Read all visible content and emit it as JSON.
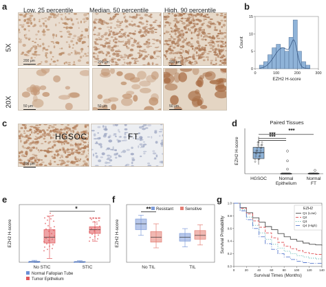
{
  "panels": {
    "a": {
      "label": "a",
      "columns": [
        "Low, 25 percentile",
        "Median, 50 percentile",
        "High, 90 percentile"
      ],
      "rows": [
        "5X",
        "20X"
      ],
      "scale_5x": "200 μm",
      "scale_20x": "50 μm"
    },
    "b": {
      "label": "b"
    },
    "c": {
      "label": "c",
      "images": [
        "HGSOC",
        "FT"
      ],
      "scale": "200 μm"
    },
    "d": {
      "label": "d"
    },
    "e": {
      "label": "e"
    },
    "f": {
      "label": "f"
    },
    "g": {
      "label": "g"
    }
  },
  "chart_data": [
    {
      "id": "b",
      "type": "bar",
      "xlabel": "EZH2 H-score",
      "ylabel": "Count",
      "xlim": [
        0,
        300
      ],
      "ylim": [
        0,
        15
      ],
      "xticks": [
        0,
        100,
        200,
        300
      ],
      "yticks": [
        0,
        5,
        10,
        15
      ],
      "bin_width": 20,
      "bins_start": [
        20,
        40,
        60,
        80,
        100,
        120,
        140,
        160,
        180,
        200,
        220,
        240
      ],
      "values": [
        1,
        2,
        4,
        6,
        7,
        6,
        5,
        9,
        14,
        5,
        2,
        1
      ],
      "density_curve": true,
      "color": "#8fb3d8"
    },
    {
      "id": "d",
      "type": "box",
      "title": "Paired Tissues",
      "ylabel": "EZH2 H-score",
      "categories": [
        "HGSOC",
        "Normal\nEpithelium",
        "Normal\nFT"
      ],
      "ylim": [
        0,
        300
      ],
      "boxes": [
        {
          "min": 60,
          "q1": 100,
          "median": 140,
          "q3": 175,
          "max": 245
        },
        {
          "min": 0,
          "q1": 0,
          "median": 0,
          "q3": 2,
          "max": 5
        },
        {
          "min": 0,
          "q1": 0,
          "median": 0,
          "q3": 3,
          "max": 8
        }
      ],
      "outliers": [
        [
          1,
          150
        ],
        [
          1,
          85
        ],
        [
          1,
          30
        ],
        [
          2,
          22
        ]
      ],
      "significance": [
        [
          "HGSOC",
          "Normal\nEpithelium",
          "***"
        ],
        [
          "HGSOC",
          "Normal\nFT",
          "***"
        ],
        [
          "HGSOC",
          "Normal\nEpithelium",
          "***"
        ]
      ],
      "color": "#8fb3d8"
    },
    {
      "id": "e",
      "type": "box",
      "ylabel": "EZH2 H-score",
      "categories": [
        "No STIC",
        "STIC"
      ],
      "ylim": [
        0,
        300
      ],
      "series": [
        {
          "name": "Normal Fallopian Tube",
          "color": "#6b8fd6",
          "boxes": [
            {
              "min": 0,
              "q1": 0,
              "median": 2,
              "q3": 5,
              "max": 10
            },
            {
              "min": 0,
              "q1": 0,
              "median": 2,
              "q3": 4,
              "max": 8
            }
          ]
        },
        {
          "name": "Tumor Epithelium",
          "color": "#e0575b",
          "boxes": [
            {
              "min": 20,
              "q1": 100,
              "median": 130,
              "q3": 170,
              "max": 240
            },
            {
              "min": 110,
              "q1": 150,
              "median": 170,
              "q3": 185,
              "max": 210
            }
          ]
        }
      ],
      "significance": [
        [
          "No STIC",
          "STIC",
          "*"
        ]
      ]
    },
    {
      "id": "f",
      "type": "box",
      "ylabel": "EZH2 H-score",
      "categories": [
        "No TIL",
        "TIL"
      ],
      "ylim": [
        0,
        300
      ],
      "series": [
        {
          "name": "Resistant",
          "color": "#7d9bd9",
          "boxes": [
            {
              "min": 140,
              "q1": 170,
              "median": 200,
              "q3": 225,
              "max": 245
            },
            {
              "min": 80,
              "q1": 110,
              "median": 130,
              "q3": 150,
              "max": 175
            }
          ]
        },
        {
          "name": "Sensitive",
          "color": "#e47d73",
          "boxes": [
            {
              "min": 75,
              "q1": 105,
              "median": 130,
              "q3": 160,
              "max": 200
            },
            {
              "min": 90,
              "q1": 120,
              "median": 140,
              "q3": 165,
              "max": 195
            }
          ]
        }
      ],
      "significance": [
        [
          "No TIL",
          "No TIL",
          "**"
        ]
      ]
    },
    {
      "id": "g",
      "type": "line",
      "xlabel": "Survival Times (Months)",
      "ylabel": "Survival Probability",
      "xlim": [
        0,
        140
      ],
      "ylim": [
        0,
        1
      ],
      "xticks": [
        0,
        20,
        40,
        60,
        80,
        100,
        120,
        140
      ],
      "yticks": [
        0,
        0.2,
        0.4,
        0.6,
        0.8,
        1.0
      ],
      "legend_title": "EZH2",
      "legend_position": "top-right",
      "series": [
        {
          "name": "Q1 (Low)",
          "color": "#4a4a4a",
          "dash": "",
          "x": [
            0,
            10,
            20,
            30,
            40,
            50,
            60,
            70,
            80,
            90,
            100,
            110,
            120,
            130,
            140
          ],
          "y": [
            1.0,
            0.93,
            0.85,
            0.77,
            0.7,
            0.63,
            0.58,
            0.52,
            0.47,
            0.43,
            0.4,
            0.37,
            0.35,
            0.34,
            0.33
          ]
        },
        {
          "name": "Q2",
          "color": "#e0575b",
          "dash": "4 2",
          "x": [
            0,
            10,
            20,
            30,
            40,
            50,
            60,
            70,
            80,
            90,
            100,
            110,
            120,
            130,
            140
          ],
          "y": [
            1.0,
            0.92,
            0.83,
            0.72,
            0.62,
            0.53,
            0.45,
            0.38,
            0.32,
            0.28,
            0.25,
            0.22,
            0.2,
            0.19,
            0.18
          ]
        },
        {
          "name": "Q3",
          "color": "#3aa6a0",
          "dash": "1 2",
          "x": [
            0,
            10,
            20,
            30,
            40,
            50,
            60,
            70,
            80,
            90,
            100,
            110,
            120,
            130,
            140
          ],
          "y": [
            1.0,
            0.9,
            0.78,
            0.65,
            0.53,
            0.43,
            0.35,
            0.29,
            0.24,
            0.2,
            0.17,
            0.15,
            0.13,
            0.12,
            0.12
          ]
        },
        {
          "name": "Q4 (High)",
          "color": "#5577cc",
          "dash": "6 2 1 2",
          "x": [
            0,
            10,
            20,
            30,
            40,
            50,
            60,
            70,
            80,
            90,
            100,
            110,
            120,
            130,
            140
          ],
          "y": [
            1.0,
            0.88,
            0.74,
            0.6,
            0.47,
            0.36,
            0.27,
            0.2,
            0.15,
            0.11,
            0.08,
            0.06,
            0.05,
            0.05,
            0.05
          ]
        }
      ]
    }
  ]
}
